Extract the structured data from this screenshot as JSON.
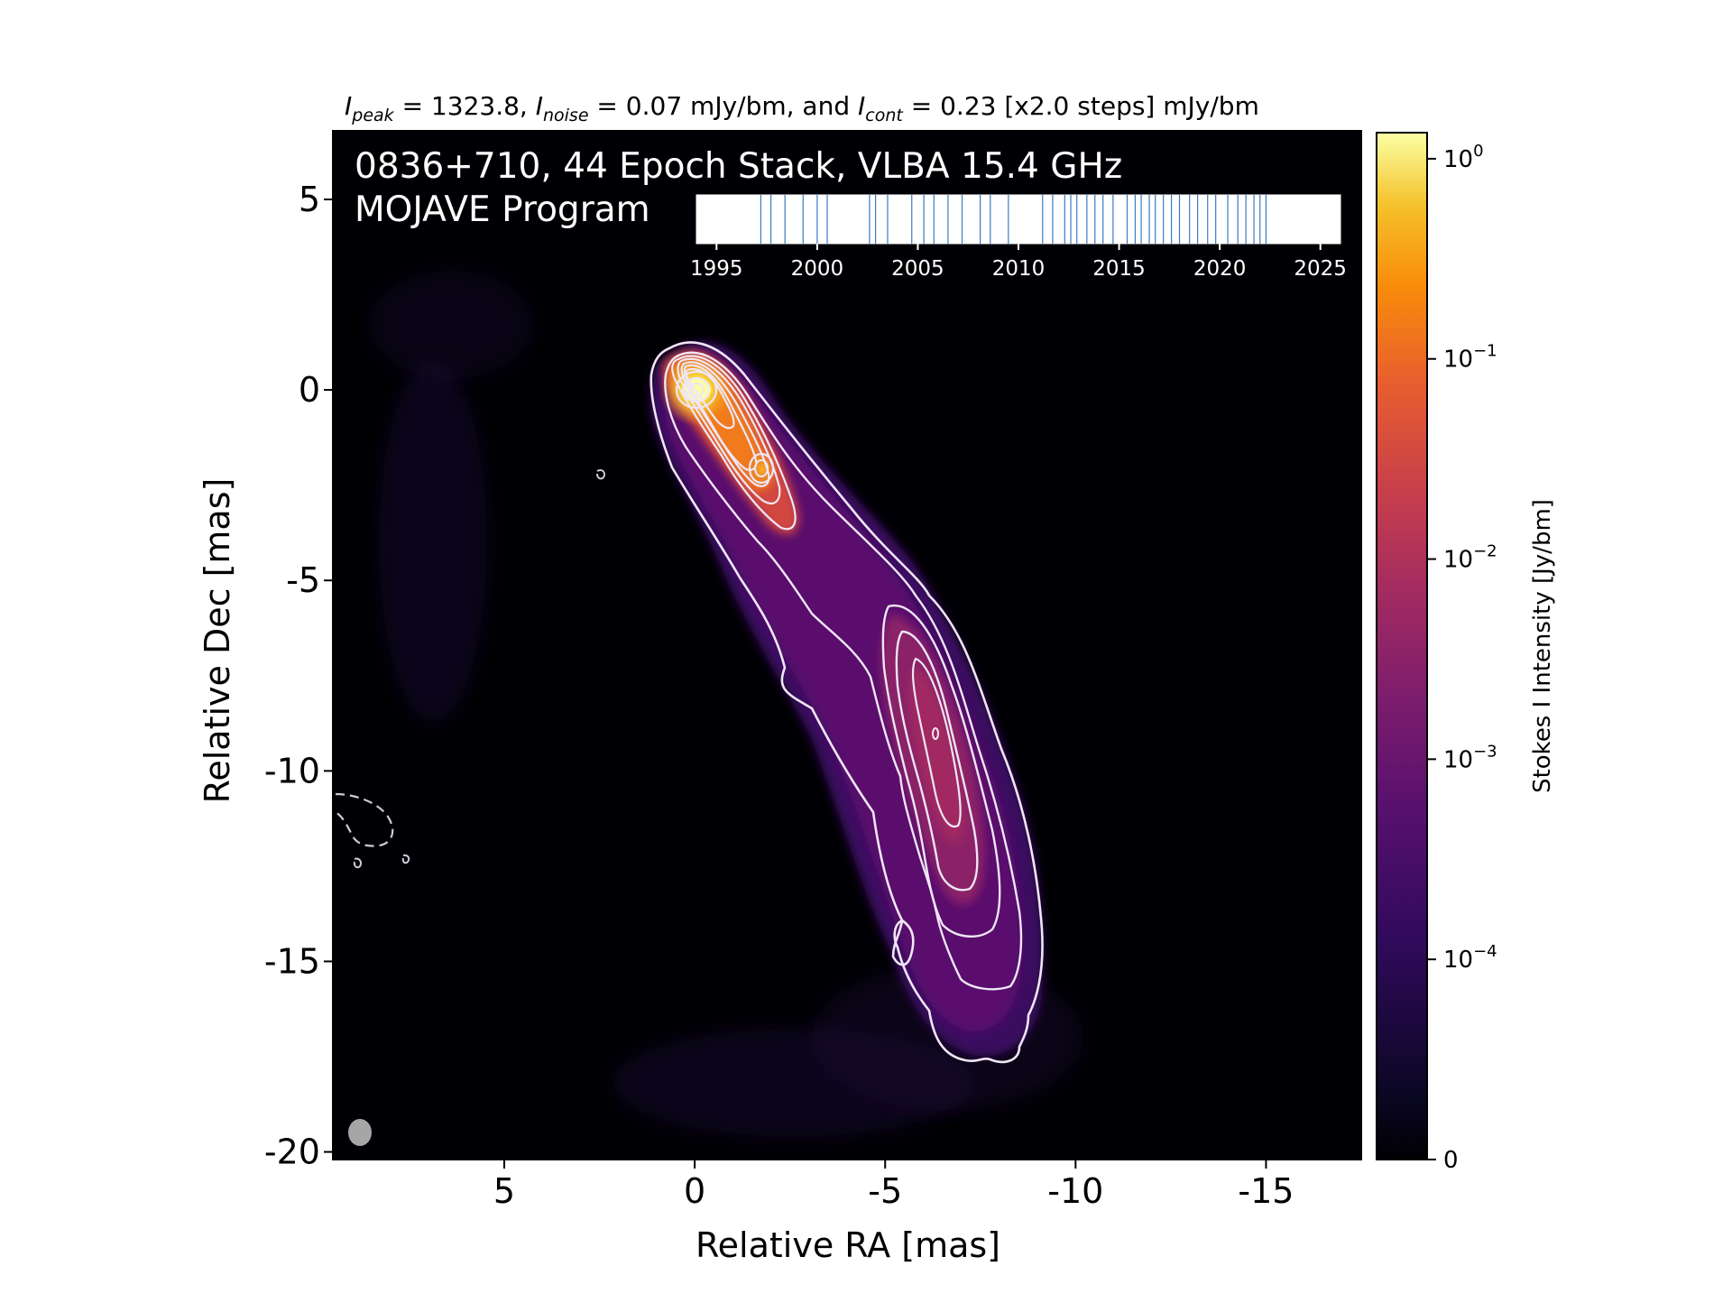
{
  "chart_data": {
    "type": "heatmap",
    "title_parts": {
      "peak_sym": "I",
      "peak_sub": "peak",
      "peak_txt": " = 1323.8, ",
      "noise_sym": "I",
      "noise_sub": "noise",
      "noise_txt": " = 0.07 mJy/bm, and ",
      "cont_sym": "I",
      "cont_sub": "cont",
      "cont_txt": " = 0.23 [x2.0 steps] mJy/bm"
    },
    "annotation_line1": "0836+710, 44 Epoch Stack, VLBA 15.4 GHz",
    "annotation_line2": "MOJAVE Program",
    "xlabel": "Relative RA [mas]",
    "ylabel": "Relative Dec [mas]",
    "xlim": [
      9.5,
      -17.5
    ],
    "ylim": [
      -20.2,
      6.8
    ],
    "x_ticks": [
      5,
      0,
      -5,
      -10,
      -15
    ],
    "x_tick_labels": [
      "5",
      "0",
      "-5",
      "-10",
      "-15"
    ],
    "y_ticks": [
      5,
      0,
      -5,
      -10,
      -15,
      -20
    ],
    "y_tick_labels": [
      "5",
      "0",
      "-5",
      "-10",
      "-15",
      "-20"
    ],
    "colorbar": {
      "label": "Stokes I Intensity [Jy/bm]",
      "scale": "symlog",
      "ticks": [
        {
          "value": 1,
          "base": "10",
          "exp": "0"
        },
        {
          "value": 0.1,
          "base": "10",
          "exp": "−1"
        },
        {
          "value": 0.01,
          "base": "10",
          "exp": "−2"
        },
        {
          "value": 0.001,
          "base": "10",
          "exp": "−3"
        },
        {
          "value": 0.0001,
          "base": "10",
          "exp": "−4"
        },
        {
          "value": 0,
          "base": "0",
          "exp": ""
        }
      ],
      "colormap": "inferno"
    },
    "epoch_timeline": {
      "xlim": [
        1994,
        2026
      ],
      "tick_labels": [
        "1995",
        "2000",
        "2005",
        "2010",
        "2015",
        "2020",
        "2025"
      ],
      "tick_values": [
        1995,
        2000,
        2005,
        2010,
        2015,
        2020,
        2025
      ],
      "epochs": [
        1997.2,
        1997.7,
        1998.4,
        1999.3,
        2000.0,
        2000.5,
        2002.6,
        2002.9,
        2003.5,
        2004.7,
        2005.3,
        2005.8,
        2006.5,
        2007.2,
        2008.1,
        2008.6,
        2009.5,
        2011.2,
        2011.7,
        2012.3,
        2012.6,
        2012.9,
        2013.4,
        2013.8,
        2014.2,
        2014.7,
        2015.4,
        2015.8,
        2016.1,
        2016.5,
        2016.8,
        2017.2,
        2017.6,
        2018.0,
        2018.5,
        2018.9,
        2019.4,
        2019.8,
        2020.4,
        2020.9,
        2021.3,
        2021.7,
        2022.0,
        2022.3
      ]
    },
    "contour_levels_mJy": [
      -0.23,
      0.23,
      0.46,
      0.92,
      1.84,
      3.68,
      7.36,
      14.72,
      29.44,
      58.88,
      117.76,
      235.52,
      471.04,
      942.08
    ]
  }
}
